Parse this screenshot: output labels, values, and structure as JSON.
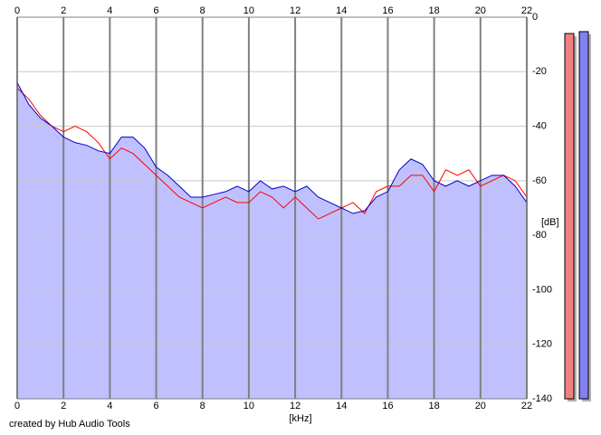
{
  "chart_data": {
    "type": "line",
    "x_label": "[kHz]",
    "y_label": "[dB]",
    "footer": "created by Hub Audio Tools",
    "x": [
      0,
      0.5,
      1,
      1.5,
      2,
      2.5,
      3,
      3.5,
      4,
      4.5,
      5,
      5.5,
      6,
      6.5,
      7,
      7.5,
      8,
      8.5,
      9,
      9.5,
      10,
      10.5,
      11,
      11.5,
      12,
      12.5,
      13,
      13.5,
      14,
      14.5,
      15,
      15.5,
      16,
      16.5,
      17,
      17.5,
      18,
      18.5,
      19,
      19.5,
      20,
      20.5,
      21,
      21.5,
      22
    ],
    "series": [
      {
        "color": "#ff0000",
        "values": [
          -26,
          -30,
          -36,
          -40,
          -42,
          -40,
          -42,
          -46,
          -52,
          -48,
          -50,
          -54,
          -58,
          -62,
          -66,
          -68,
          -70,
          -68,
          -66,
          -68,
          -68,
          -64,
          -66,
          -70,
          -66,
          -70,
          -74,
          -72,
          -70,
          -68,
          -72,
          -64,
          -62,
          -62,
          -58,
          -58,
          -64,
          -56,
          -58,
          -56,
          -62,
          -60,
          -58,
          -60,
          -66
        ]
      },
      {
        "color": "#0000cc",
        "fill": "#c0c0ff",
        "values": [
          -24,
          -32,
          -37,
          -40,
          -44,
          -46,
          -47,
          -49,
          -50,
          -44,
          -44,
          -48,
          -55,
          -58,
          -62,
          -66,
          -66,
          -65,
          -64,
          -62,
          -64,
          -60,
          -63,
          -62,
          -64,
          -62,
          -66,
          -68,
          -70,
          -72,
          -71,
          -66,
          -64,
          -56,
          -52,
          -54,
          -60,
          -62,
          -60,
          -62,
          -60,
          -58,
          -58,
          -62,
          -68
        ]
      }
    ],
    "meters": [
      {
        "color": "#f08080",
        "value": -6
      },
      {
        "color": "#8080f0",
        "value": -5.3
      }
    ],
    "xlim": [
      0,
      22
    ],
    "xticks": [
      0,
      2,
      4,
      6,
      8,
      10,
      12,
      14,
      16,
      18,
      20,
      22
    ],
    "ylim": [
      -140,
      0
    ],
    "yticks": [
      0,
      -20,
      -40,
      -60,
      -80,
      -100,
      -120,
      -140
    ],
    "grid": true
  }
}
